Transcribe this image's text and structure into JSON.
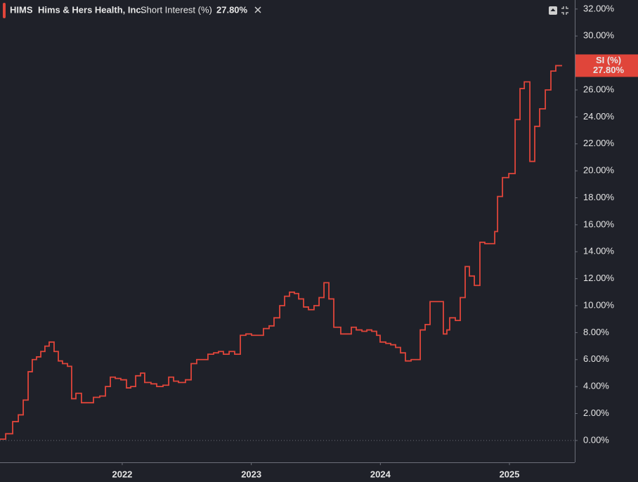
{
  "header": {
    "ticker": "HIMS",
    "company": "Hims & Hers Health, Inc.",
    "indicator": "Short Interest (%)"
  },
  "chart_data": {
    "type": "step-line",
    "x": [
      2021.053,
      2021.097,
      2021.151,
      2021.195,
      2021.233,
      2021.271,
      2021.303,
      2021.336,
      2021.369,
      2021.401,
      2021.434,
      2021.472,
      2021.505,
      2021.537,
      2021.576,
      2021.608,
      2021.641,
      2021.684,
      2021.733,
      2021.777,
      2021.826,
      2021.87,
      2021.908,
      2021.946,
      2021.989,
      2022.033,
      2022.066,
      2022.104,
      2022.142,
      2022.174,
      2022.223,
      2022.267,
      2022.316,
      2022.36,
      2022.398,
      2022.436,
      2022.49,
      2022.534,
      2022.577,
      2022.626,
      2022.664,
      2022.708,
      2022.746,
      2022.784,
      2022.828,
      2022.871,
      2022.915,
      2022.958,
      2023.002,
      2023.056,
      2023.094,
      2023.138,
      2023.176,
      2023.22,
      2023.258,
      2023.296,
      2023.334,
      2023.367,
      2023.405,
      2023.443,
      2023.486,
      2023.525,
      2023.563,
      2023.601,
      2023.639,
      2023.693,
      2023.748,
      2023.775,
      2023.813,
      2023.857,
      2023.895,
      2023.933,
      2023.971,
      2023.998,
      2024.042,
      2024.08,
      2024.118,
      2024.156,
      2024.194,
      2024.238,
      2024.281,
      2024.309,
      2024.347,
      2024.385,
      2024.472,
      2024.488,
      2024.515,
      2024.537,
      2024.581,
      2024.619,
      2024.657,
      2024.69,
      2024.728,
      2024.771,
      2024.809,
      2024.886,
      2024.908,
      2024.946,
      2024.995,
      2025.044,
      2025.082,
      2025.115,
      2025.158,
      2025.196,
      2025.234,
      2025.278,
      2025.321,
      2025.359,
      2025.408
    ],
    "series": [
      {
        "name": "SI (%)",
        "color": "#e0453a",
        "values": [
          0.1,
          0.5,
          1.4,
          1.9,
          3.0,
          5.1,
          6.0,
          6.2,
          6.6,
          7.0,
          7.3,
          6.6,
          5.9,
          5.7,
          5.5,
          3.1,
          3.5,
          2.8,
          2.8,
          3.2,
          3.3,
          4.0,
          4.7,
          4.6,
          4.5,
          3.9,
          4.0,
          4.8,
          5.0,
          4.3,
          4.2,
          4.0,
          4.1,
          4.7,
          4.4,
          4.3,
          4.5,
          5.7,
          6.0,
          6.0,
          6.4,
          6.5,
          6.6,
          6.4,
          6.6,
          6.4,
          7.8,
          7.9,
          7.8,
          7.8,
          8.3,
          8.5,
          9.1,
          10.0,
          10.7,
          11.0,
          10.9,
          10.5,
          9.9,
          9.7,
          10.0,
          10.6,
          11.7,
          10.5,
          8.4,
          7.9,
          7.9,
          8.4,
          8.2,
          8.1,
          8.2,
          8.1,
          7.8,
          7.3,
          7.2,
          7.1,
          6.9,
          6.5,
          5.9,
          6.0,
          6.0,
          8.2,
          8.6,
          10.3,
          10.3,
          7.9,
          8.2,
          9.1,
          8.9,
          10.6,
          12.9,
          12.2,
          11.5,
          14.7,
          14.6,
          15.5,
          18.1,
          19.5,
          19.8,
          23.8,
          26.1,
          26.6,
          20.7,
          23.3,
          24.6,
          26.0,
          27.4,
          27.8,
          27.8
        ]
      }
    ],
    "last_value_label": "27.80%",
    "xlim": [
      2021.053,
      2025.506
    ],
    "xticks": [
      2022,
      2023,
      2024,
      2025
    ],
    "ylim": [
      -1.62,
      32.67
    ],
    "yticks": [
      {
        "value": 0,
        "label": "0.00%"
      },
      {
        "value": 2,
        "label": "2.00%"
      },
      {
        "value": 4,
        "label": "4.00%"
      },
      {
        "value": 6,
        "label": "6.00%"
      },
      {
        "value": 8,
        "label": "8.00%"
      },
      {
        "value": 10,
        "label": "10.00%"
      },
      {
        "value": 12,
        "label": "12.00%"
      },
      {
        "value": 14,
        "label": "14.00%"
      },
      {
        "value": 16,
        "label": "16.00%"
      },
      {
        "value": 18,
        "label": "18.00%"
      },
      {
        "value": 20,
        "label": "20.00%"
      },
      {
        "value": 22,
        "label": "22.00%"
      },
      {
        "value": 24,
        "label": "24.00%"
      },
      {
        "value": 26,
        "label": "26.00%"
      },
      {
        "value": 28,
        "label": "28.00%"
      },
      {
        "value": 30,
        "label": "30.00%"
      },
      {
        "value": 32,
        "label": "32.00%"
      }
    ],
    "grid": false
  }
}
